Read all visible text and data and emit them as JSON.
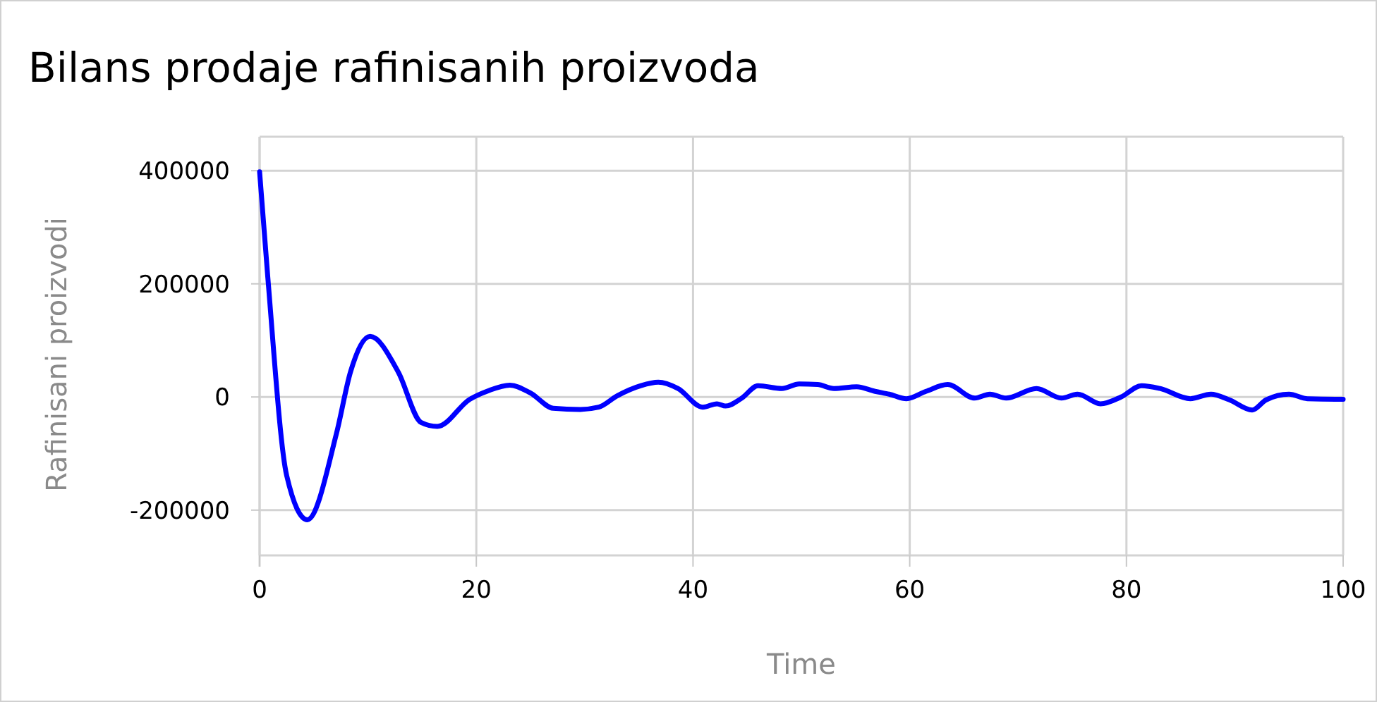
{
  "chart_data": {
    "type": "line",
    "title": "Bilans prodaje rafinisanih proizvoda",
    "xlabel": "Time",
    "ylabel": "Rafinisani proizvodi",
    "x": [
      0,
      0.76,
      2.5,
      4.4,
      7.1,
      8.4,
      10.2,
      12.8,
      14.9,
      16.4,
      19.4,
      21.1,
      23.1,
      25,
      27.1,
      29.6,
      31.3,
      33,
      35.2,
      36.8,
      38.6,
      40.9,
      42.2,
      43,
      44.5,
      46,
      48.2,
      49.8,
      51.5,
      53,
      55.1,
      56.8,
      58.1,
      59.7,
      61.5,
      63.5,
      66,
      67.4,
      68.9,
      71.7,
      74,
      75.5,
      77.6,
      79.5,
      81.4,
      83.1,
      85.9,
      87.8,
      89.5,
      91.6,
      92.9,
      95,
      96.7,
      99.3,
      100
    ],
    "series": [
      {
        "color": "#0000ff",
        "values": [
          398000,
          211000,
          -139000,
          -217000,
          -64000,
          45000,
          107000,
          44000,
          -45000,
          -52000,
          -4000,
          11000,
          21000,
          7000,
          -20000,
          -22000,
          -18000,
          2000,
          20000,
          26000,
          15000,
          -18000,
          -12000,
          -16000,
          -2000,
          20000,
          15000,
          23000,
          22000,
          15000,
          18000,
          10000,
          5000,
          -3000,
          10000,
          22000,
          -2000,
          5000,
          -2000,
          15000,
          -2000,
          5000,
          -12000,
          0,
          20000,
          15000,
          -3000,
          5000,
          -5000,
          -23000,
          -5000,
          5000,
          -3000,
          -4000,
          -4000
        ]
      }
    ],
    "xlim": [
      0,
      100
    ],
    "xticks": [
      0,
      20,
      40,
      60,
      80,
      100
    ],
    "ylim": [
      -280000,
      460000
    ],
    "yticks": [
      -200000,
      0,
      200000,
      400000
    ],
    "grid": true,
    "line_style": "solid",
    "marker": "none"
  }
}
